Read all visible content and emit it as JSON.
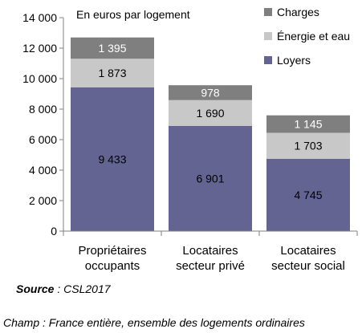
{
  "chart_data": {
    "type": "bar",
    "stacked": true,
    "title": "En euros par logement",
    "xlabel": "",
    "ylabel": "",
    "categories": [
      [
        "Propriétaires",
        "occupants"
      ],
      [
        "Locataires",
        "secteur privé"
      ],
      [
        "Locataires",
        "secteur social"
      ]
    ],
    "series": [
      {
        "name": "Loyers",
        "color": "#646493",
        "values": [
          9433,
          6901,
          4745
        ],
        "labels": [
          "9 433",
          "6 901",
          "4 745"
        ],
        "label_color": "#000000"
      },
      {
        "name": "Énergie et eau",
        "color": "#c8c8c8",
        "values": [
          1873,
          1690,
          1703
        ],
        "labels": [
          "1 873",
          "1 690",
          "1 703"
        ],
        "label_color": "#000000"
      },
      {
        "name": "Charges",
        "color": "#7f7f7f",
        "values": [
          1395,
          978,
          1145
        ],
        "labels": [
          "1 395",
          "978",
          "1 145"
        ],
        "label_color": "#ffffff"
      }
    ],
    "ylim": [
      0,
      14000
    ],
    "yticks": [
      0,
      2000,
      4000,
      6000,
      8000,
      10000,
      12000,
      14000
    ],
    "ytick_labels": [
      "0",
      "2 000",
      "4 000",
      "6 000",
      "8 000",
      "10 000",
      "12 000",
      "14 000"
    ],
    "grid": false,
    "legend_position": "top-right",
    "legend_order": [
      "Charges",
      "Énergie et eau",
      "Loyers"
    ]
  },
  "footer": {
    "source_label": "Source",
    "source_text": " : CSL2017",
    "champ_text": "Champ : France entière, ensemble des logements ordinaires"
  }
}
